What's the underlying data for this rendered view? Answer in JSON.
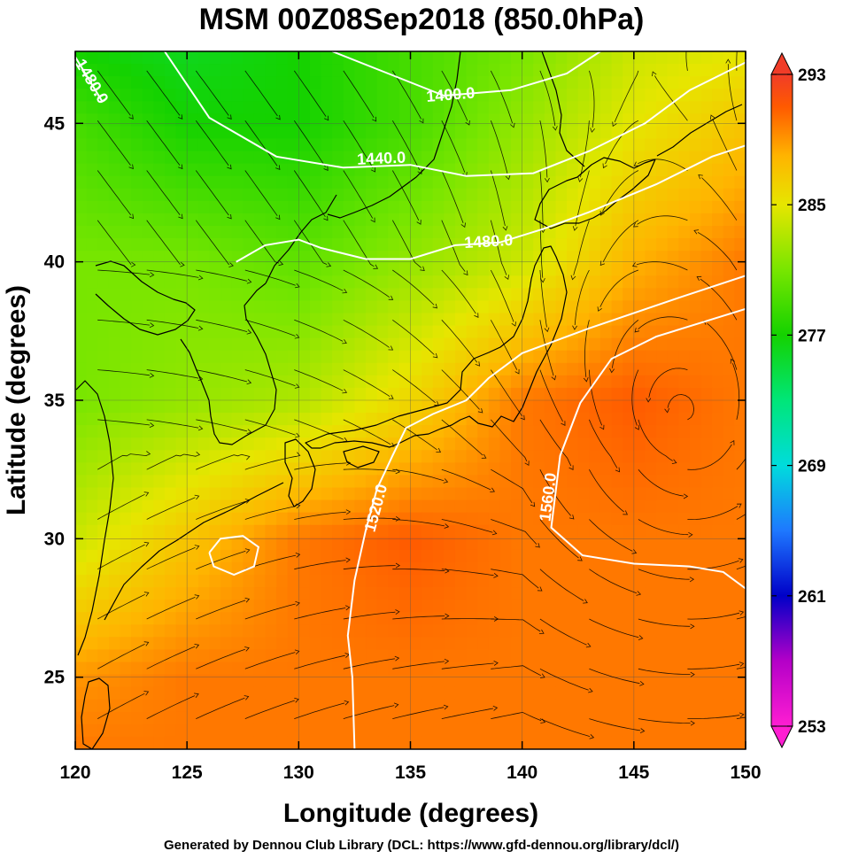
{
  "title": "MSM 00Z08Sep2018 (850.0hPa)",
  "footer": "Generated by Dennou Club Library (DCL: https://www.gfd-dennou.org/library/dcl/)",
  "chart_data": {
    "type": "heatmap",
    "title": "MSM 00Z08Sep2018 (850.0hPa)",
    "xlabel": "Longitude (degrees)",
    "ylabel": "Latitude  (degrees)",
    "xlim": [
      120,
      150
    ],
    "ylim": [
      22.4,
      47.6
    ],
    "xticks": [
      120,
      125,
      130,
      135,
      140,
      145,
      150
    ],
    "xtick_labels": [
      "120",
      "125",
      "130",
      "135",
      "140",
      "145",
      "150"
    ],
    "yticks": [
      25,
      30,
      35,
      40,
      45
    ],
    "ytick_labels": [
      "25",
      "30",
      "35",
      "40",
      "45"
    ],
    "grid": true,
    "colorbar": {
      "range": [
        253,
        293
      ],
      "ticks": [
        253,
        261,
        269,
        277,
        285,
        293
      ],
      "tick_labels": [
        "253",
        "261",
        "269",
        "277",
        "285",
        "293"
      ],
      "colors": {
        "253": "#ff1ed2",
        "257": "#b400c8",
        "261": "#0000c8",
        "265": "#1e78ff",
        "269": "#00dcdc",
        "273": "#00e678",
        "277": "#14d200",
        "281": "#78e600",
        "285": "#e6e600",
        "288": "#ffb400",
        "291": "#ff5a00",
        "293": "#f03c28"
      },
      "extend": "both"
    },
    "temperature_field_K": {
      "grid_lon": [
        120,
        125,
        130,
        135,
        140,
        145,
        150
      ],
      "grid_lat": [
        47.6,
        45,
        40,
        35,
        30,
        25,
        22.4
      ],
      "values": [
        [
          277,
          276,
          277,
          279,
          281,
          284,
          285
        ],
        [
          279,
          277,
          277,
          279,
          282,
          285,
          287
        ],
        [
          281,
          281,
          280,
          282,
          284,
          288,
          290
        ],
        [
          281,
          282,
          283,
          286,
          290,
          291,
          290
        ],
        [
          284,
          287,
          290,
          291,
          290,
          290,
          290
        ],
        [
          289,
          290,
          290,
          290,
          290,
          290,
          290
        ],
        [
          290,
          290,
          290,
          290,
          290,
          290,
          290
        ]
      ]
    },
    "contours_geopotential_m": [
      {
        "label": "1400.0",
        "label_at": [
          136.8,
          46.0
        ],
        "points": [
          [
            131.5,
            47.6
          ],
          [
            134,
            46.8
          ],
          [
            136.5,
            46.0
          ],
          [
            139.5,
            46.2
          ],
          [
            142,
            46.8
          ],
          [
            143.5,
            47.6
          ]
        ]
      },
      {
        "label": "1440.0",
        "label_at": [
          133.7,
          43.7
        ],
        "points": [
          [
            124,
            47.6
          ],
          [
            126,
            45.2
          ],
          [
            129,
            43.8
          ],
          [
            132,
            43.4
          ],
          [
            135,
            43.5
          ],
          [
            137.5,
            43.1
          ],
          [
            140.5,
            43.2
          ],
          [
            143,
            44.0
          ],
          [
            145.5,
            45.0
          ],
          [
            147.5,
            46.2
          ],
          [
            150,
            47.2
          ]
        ]
      },
      {
        "label": "1480.0",
        "label_at": [
          120.7,
          46.5
        ],
        "points": [
          [
            120,
            47.4
          ],
          [
            120.6,
            46.6
          ],
          [
            121.2,
            45.8
          ]
        ]
      },
      {
        "label": "1480.0",
        "label_at": [
          138.5,
          40.7
        ],
        "points": [
          [
            127.2,
            40.0
          ],
          [
            128.5,
            40.6
          ],
          [
            130,
            40.8
          ],
          [
            131,
            40.5
          ],
          [
            133,
            40.1
          ],
          [
            135,
            40.1
          ],
          [
            137,
            40.6
          ],
          [
            139,
            40.7
          ],
          [
            141,
            41.2
          ],
          [
            143,
            41.8
          ],
          [
            146,
            42.8
          ],
          [
            148.5,
            43.8
          ],
          [
            150,
            44.2
          ]
        ]
      },
      {
        "label": "1520.0",
        "label_at": [
          133.5,
          31.1
        ],
        "points": [
          [
            150,
            39.5
          ],
          [
            147,
            38.7
          ],
          [
            143,
            37.6
          ],
          [
            140,
            36.7
          ],
          [
            138.5,
            35.8
          ],
          [
            137.5,
            35.0
          ],
          [
            136,
            34.5
          ],
          [
            134.8,
            34.0
          ],
          [
            134.2,
            33.0
          ],
          [
            133.5,
            31.8
          ],
          [
            133,
            30.3
          ],
          [
            132.5,
            28.5
          ],
          [
            132.2,
            26.5
          ],
          [
            132.4,
            25.0
          ],
          [
            132.5,
            22.4
          ]
        ]
      },
      {
        "label": "1560.0",
        "label_at": [
          141.2,
          31.5
        ],
        "points": [
          [
            150,
            38.3
          ],
          [
            148,
            37.8
          ],
          [
            146,
            37.3
          ],
          [
            144,
            36.5
          ],
          [
            142.6,
            34.9
          ],
          [
            141.7,
            33.0
          ],
          [
            141.3,
            30.4
          ],
          [
            142.7,
            29.4
          ],
          [
            145,
            29.1
          ],
          [
            147.5,
            29.0
          ],
          [
            149,
            28.8
          ],
          [
            150,
            28.2
          ]
        ]
      },
      {
        "label": "",
        "label_at": [
          127,
          29.5
        ],
        "points": [
          [
            126,
            29.5
          ],
          [
            126.5,
            30.0
          ],
          [
            127.5,
            30.1
          ],
          [
            128.2,
            29.7
          ],
          [
            128.0,
            29.0
          ],
          [
            127.1,
            28.7
          ],
          [
            126.2,
            29.0
          ],
          [
            126,
            29.5
          ]
        ]
      }
    ]
  }
}
